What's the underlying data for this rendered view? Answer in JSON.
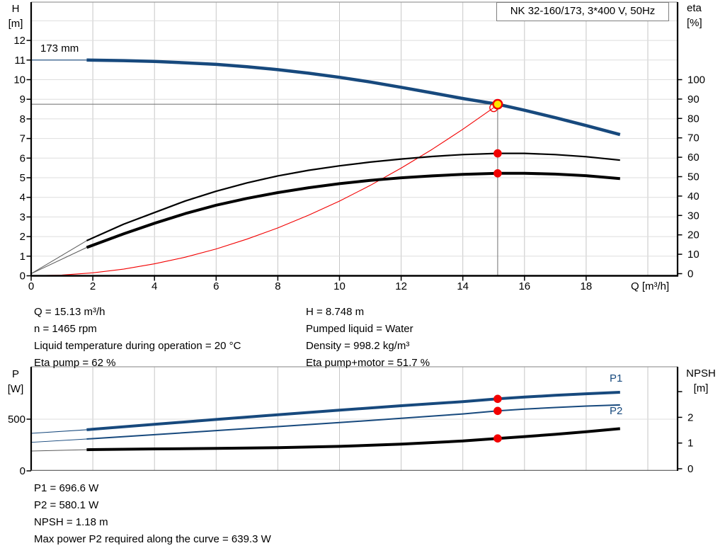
{
  "title_box": {
    "label": "NK 32-160/173, 3*400 V, 50Hz"
  },
  "labels": {
    "h": "H",
    "h_unit": "[m]",
    "eta": "eta",
    "eta_unit": "[%]",
    "q_axis": "Q [m³/h]",
    "p": "P",
    "p_unit": "[W]",
    "npsh": "NPSH",
    "npsh_unit": "[m]",
    "impeller": "173 mm",
    "p1": "P1",
    "p2": "P2"
  },
  "op_text": {
    "left": [
      "Q = 15.13 m³/h",
      "n = 1465 rpm",
      "Liquid temperature during operation = 20 °C",
      "Eta pump = 62 %"
    ],
    "right": [
      "H = 8.748 m",
      "Pumped liquid = Water",
      "Density = 998.2 kg/m³",
      "Eta pump+motor = 51.7 %"
    ]
  },
  "bottom_text": [
    "P1 = 696.6 W",
    "P2 = 580.1 W",
    "NPSH = 1.18 m",
    "Max power P2 required along the curve = 639.3 W"
  ],
  "colors": {
    "curve_blue": "#17497d",
    "red": "#f20000",
    "yellow": "#ffe600",
    "gray_ext": "#5a5a5a",
    "guide": "#7d7d7d",
    "grid_v": "#c6c6c6",
    "grid_h": "#dedede",
    "border_gray": "#9c9c9c",
    "black": "#000000"
  },
  "chart_data": [
    {
      "type": "line",
      "title": "NK 32-160/173, 3*400 V, 50Hz",
      "xlabel": "Q [m³/h]",
      "ylabel_left": "H [m]",
      "ylabel_right": "eta [%]",
      "xlim": [
        0,
        20.95
      ],
      "ylim_left": [
        0,
        13.95
      ],
      "ylim_right": [
        0,
        140
      ],
      "x_ticks": [
        0,
        2,
        4,
        6,
        8,
        10,
        12,
        14,
        16,
        18
      ],
      "y_ticks_left": [
        0,
        1,
        2,
        3,
        4,
        5,
        6,
        7,
        8,
        9,
        10,
        11,
        12
      ],
      "y_ticks_right": [
        0,
        10,
        20,
        30,
        40,
        50,
        60,
        70,
        80,
        90,
        100
      ],
      "grid": true,
      "annotation": "173 mm",
      "series": [
        {
          "name": "qh-ext",
          "axis": "H",
          "color": "#17497d",
          "width": 1.2,
          "points": [
            [
              0,
              11.0
            ],
            [
              1.8,
              11.0
            ]
          ]
        },
        {
          "name": "qh-173mm",
          "axis": "H",
          "color": "#17497d",
          "width": 4.5,
          "points": [
            [
              1.8,
              11.0
            ],
            [
              3,
              10.97
            ],
            [
              4,
              10.93
            ],
            [
              5,
              10.86
            ],
            [
              6,
              10.78
            ],
            [
              7,
              10.66
            ],
            [
              8,
              10.51
            ],
            [
              9,
              10.33
            ],
            [
              10,
              10.12
            ],
            [
              11,
              9.88
            ],
            [
              12,
              9.61
            ],
            [
              13,
              9.33
            ],
            [
              14,
              9.04
            ],
            [
              15.13,
              8.748
            ],
            [
              16,
              8.44
            ],
            [
              17,
              8.06
            ],
            [
              18,
              7.66
            ],
            [
              19.1,
              7.2
            ]
          ]
        },
        {
          "name": "system-curve",
          "axis": "H",
          "color": "#f20000",
          "width": 1.1,
          "points": [
            [
              0,
              0
            ],
            [
              1,
              0.04
            ],
            [
              2,
              0.15
            ],
            [
              3,
              0.34
            ],
            [
              4,
              0.61
            ],
            [
              5,
              0.95
            ],
            [
              6,
              1.37
            ],
            [
              7,
              1.87
            ],
            [
              8,
              2.44
            ],
            [
              9,
              3.09
            ],
            [
              10,
              3.81
            ],
            [
              11,
              4.61
            ],
            [
              12,
              5.49
            ],
            [
              13,
              6.44
            ],
            [
              14,
              7.47
            ],
            [
              15,
              8.57
            ]
          ]
        },
        {
          "name": "eta-pump-ext",
          "axis": "ETA",
          "color": "#5a5a5a",
          "width": 1,
          "points": [
            [
              0,
              0
            ],
            [
              1.8,
              17
            ]
          ]
        },
        {
          "name": "eta-pump",
          "axis": "ETA",
          "color": "#000000",
          "width": 2.2,
          "points": [
            [
              1.8,
              17
            ],
            [
              3,
              25.5
            ],
            [
              4,
              31.5
            ],
            [
              5,
              37.5
            ],
            [
              6,
              42.5
            ],
            [
              7,
              46.8
            ],
            [
              8,
              50.4
            ],
            [
              9,
              53.3
            ],
            [
              10,
              55.6
            ],
            [
              11,
              57.5
            ],
            [
              12,
              59.1
            ],
            [
              13,
              60.4
            ],
            [
              14,
              61.4
            ],
            [
              15.13,
              62
            ],
            [
              16,
              62
            ],
            [
              17,
              61.4
            ],
            [
              18,
              60.3
            ],
            [
              19.1,
              58.5
            ]
          ]
        },
        {
          "name": "eta-pump-motor-ext",
          "axis": "ETA",
          "color": "#5a5a5a",
          "width": 1,
          "points": [
            [
              0,
              0
            ],
            [
              1.8,
              13.5
            ]
          ]
        },
        {
          "name": "eta-pump-motor",
          "axis": "ETA",
          "color": "#000000",
          "width": 4,
          "points": [
            [
              1.8,
              13.5
            ],
            [
              3,
              20.5
            ],
            [
              4,
              26
            ],
            [
              5,
              31
            ],
            [
              6,
              35.3
            ],
            [
              7,
              38.8
            ],
            [
              8,
              41.8
            ],
            [
              9,
              44.3
            ],
            [
              10,
              46.4
            ],
            [
              11,
              48.1
            ],
            [
              12,
              49.4
            ],
            [
              13,
              50.4
            ],
            [
              14,
              51.2
            ],
            [
              15.13,
              51.7
            ],
            [
              16,
              51.75
            ],
            [
              17,
              51.3
            ],
            [
              18,
              50.5
            ],
            [
              19.1,
              49
            ]
          ]
        }
      ],
      "markers": [
        {
          "name": "requested-duty-point",
          "axis": "H",
          "q": 15.0,
          "v": 8.57,
          "style": "open-red"
        },
        {
          "name": "duty-point",
          "axis": "H",
          "q": 15.13,
          "v": 8.748,
          "style": "yellow-red"
        },
        {
          "name": "eta-pump-point",
          "axis": "ETA",
          "q": 15.13,
          "v": 62,
          "style": "red-dot"
        },
        {
          "name": "eta-pump-motor-point",
          "axis": "ETA",
          "q": 15.13,
          "v": 51.7,
          "style": "red-dot"
        }
      ],
      "guides": {
        "h_line": {
          "axis": "H",
          "value": 8.748,
          "q_from": 0,
          "q_to": 15.13
        },
        "v_line": {
          "q": 15.13,
          "axis": "H",
          "v_from": 0,
          "v_to": 8.748
        }
      }
    },
    {
      "type": "line",
      "xlabel": "Q [m³/h]",
      "ylabel_left": "P [W]",
      "ylabel_right": "NPSH [m]",
      "xlim": [
        0,
        20.95
      ],
      "ylim_left": [
        0,
        1007
      ],
      "ylim_right": [
        0,
        3.97
      ],
      "x_ticks": [],
      "y_ticks_left": [
        0,
        500
      ],
      "y_ticks_right": [
        0,
        1,
        2,
        3
      ],
      "y_tick_labels_right": [
        "0",
        "1",
        "2",
        ""
      ],
      "grid": true,
      "series": [
        {
          "name": "p1-ext",
          "axis": "P",
          "color": "#17497d",
          "width": 1.1,
          "points": [
            [
              0,
              363
            ],
            [
              1.8,
              398
            ]
          ]
        },
        {
          "name": "p1",
          "axis": "P",
          "color": "#17497d",
          "width": 4,
          "points": [
            [
              1.8,
              398
            ],
            [
              4,
              450
            ],
            [
              6,
              497
            ],
            [
              8,
              543
            ],
            [
              10,
              587
            ],
            [
              12,
              630
            ],
            [
              14,
              670
            ],
            [
              15.13,
              696.6
            ],
            [
              16,
              714
            ],
            [
              17,
              731
            ],
            [
              18,
              746
            ],
            [
              19.1,
              760
            ]
          ]
        },
        {
          "name": "p2-ext",
          "axis": "P",
          "color": "#17497d",
          "width": 0.9,
          "points": [
            [
              0,
              276
            ],
            [
              1.8,
              308
            ]
          ]
        },
        {
          "name": "p2",
          "axis": "P",
          "color": "#17497d",
          "width": 2,
          "points": [
            [
              1.8,
              308
            ],
            [
              4,
              350
            ],
            [
              6,
              390
            ],
            [
              8,
              428
            ],
            [
              10,
              467
            ],
            [
              12,
              508
            ],
            [
              14,
              551
            ],
            [
              15.13,
              580.1
            ],
            [
              16,
              597
            ],
            [
              17,
              613
            ],
            [
              18,
              627
            ],
            [
              19.1,
              638
            ]
          ]
        },
        {
          "name": "npsh-ext",
          "axis": "NPSH",
          "color": "#5a5a5a",
          "width": 1,
          "points": [
            [
              0,
              0.69
            ],
            [
              1.8,
              0.74
            ]
          ]
        },
        {
          "name": "npsh",
          "axis": "NPSH",
          "color": "#000000",
          "width": 4,
          "points": [
            [
              1.8,
              0.74
            ],
            [
              4,
              0.77
            ],
            [
              6,
              0.79
            ],
            [
              8,
              0.82
            ],
            [
              10,
              0.87
            ],
            [
              12,
              0.96
            ],
            [
              14,
              1.08
            ],
            [
              15.13,
              1.18
            ],
            [
              16,
              1.25
            ],
            [
              17,
              1.34
            ],
            [
              18,
              1.44
            ],
            [
              19.1,
              1.56
            ]
          ]
        }
      ],
      "markers": [
        {
          "name": "p1-point",
          "axis": "P",
          "q": 15.13,
          "v": 696.6,
          "style": "red-dot"
        },
        {
          "name": "p2-point",
          "axis": "P",
          "q": 15.13,
          "v": 580.1,
          "style": "red-dot"
        },
        {
          "name": "npsh-point",
          "axis": "NPSH",
          "q": 15.13,
          "v": 1.18,
          "style": "red-dot"
        }
      ]
    }
  ]
}
